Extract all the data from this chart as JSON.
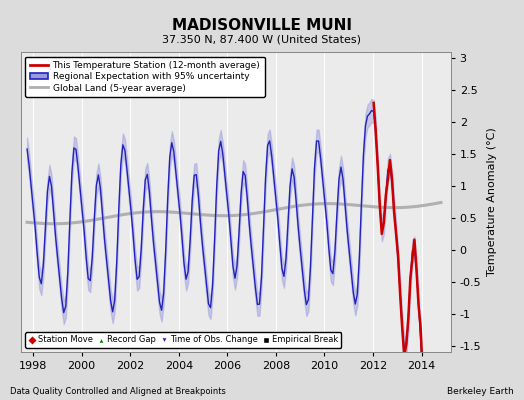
{
  "title": "MADISONVILLE MUNI",
  "subtitle": "37.350 N, 87.400 W (United States)",
  "ylabel": "Temperature Anomaly (°C)",
  "footer_left": "Data Quality Controlled and Aligned at Breakpoints",
  "footer_right": "Berkeley Earth",
  "xlim": [
    1997.5,
    2015.2
  ],
  "ylim": [
    -1.6,
    3.1
  ],
  "yticks": [
    -1.5,
    -1.0,
    -0.5,
    0.0,
    0.5,
    1.0,
    1.5,
    2.0,
    2.5,
    3.0
  ],
  "xticks": [
    1998,
    2000,
    2002,
    2004,
    2006,
    2008,
    2010,
    2012,
    2014
  ],
  "background_color": "#dcdcdc",
  "plot_bg_color": "#ebebeb",
  "blue_line_color": "#2222bb",
  "blue_fill_color": "#9999dd",
  "red_line_color": "#cc0000",
  "gray_line_color": "#b0b0b0",
  "legend_labels": [
    "This Temperature Station (12-month average)",
    "Regional Expectation with 95% uncertainty",
    "Global Land (5-year average)"
  ],
  "bottom_legend": [
    {
      "marker": "D",
      "color": "#cc0000",
      "label": "Station Move"
    },
    {
      "marker": "^",
      "color": "#008800",
      "label": "Record Gap"
    },
    {
      "marker": "v",
      "color": "#2222bb",
      "label": "Time of Obs. Change"
    },
    {
      "marker": "s",
      "color": "#000000",
      "label": "Empirical Break"
    }
  ]
}
